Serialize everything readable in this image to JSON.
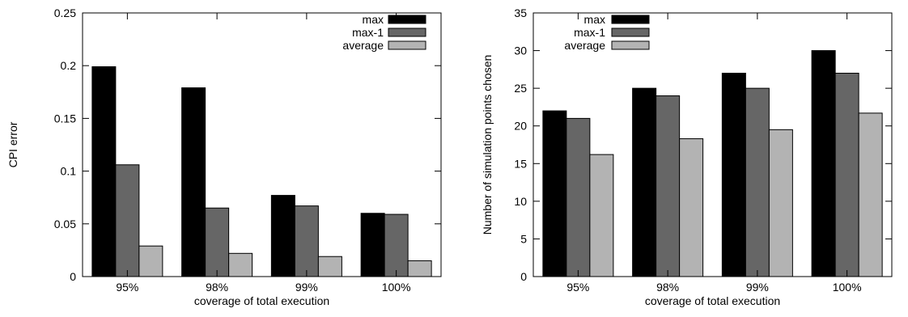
{
  "chart_data": [
    {
      "type": "bar",
      "categories": [
        "95%",
        "98%",
        "99%",
        "100%"
      ],
      "series": [
        {
          "name": "max",
          "values": [
            0.199,
            0.179,
            0.077,
            0.06
          ],
          "color": "#000000"
        },
        {
          "name": "max-1",
          "values": [
            0.106,
            0.065,
            0.067,
            0.059
          ],
          "color": "#666666"
        },
        {
          "name": "average",
          "values": [
            0.029,
            0.022,
            0.019,
            0.015
          ],
          "color": "#b3b3b3"
        }
      ],
      "xlabel": "coverage of total execution",
      "ylabel": "CPI error",
      "ylim": [
        0,
        0.25
      ],
      "yticks": [
        "0",
        "0.05",
        "0.1",
        "0.15",
        "0.2",
        "0.25"
      ],
      "ytick_values": [
        0,
        0.05,
        0.1,
        0.15,
        0.2,
        0.25
      ],
      "legend": "top-right",
      "grid": false
    },
    {
      "type": "bar",
      "categories": [
        "95%",
        "98%",
        "99%",
        "100%"
      ],
      "series": [
        {
          "name": "max",
          "values": [
            22,
            25,
            27,
            30
          ],
          "color": "#000000"
        },
        {
          "name": "max-1",
          "values": [
            21,
            24,
            25,
            27
          ],
          "color": "#666666"
        },
        {
          "name": "average",
          "values": [
            16.2,
            18.3,
            19.5,
            21.7
          ],
          "color": "#b3b3b3"
        }
      ],
      "xlabel": "coverage of total execution",
      "ylabel": "Number of simulation points chosen",
      "ylim": [
        0,
        35
      ],
      "yticks": [
        "0",
        "5",
        "10",
        "15",
        "20",
        "25",
        "30",
        "35"
      ],
      "ytick_values": [
        0,
        5,
        10,
        15,
        20,
        25,
        30,
        35
      ],
      "legend": "top-left",
      "grid": false
    }
  ]
}
